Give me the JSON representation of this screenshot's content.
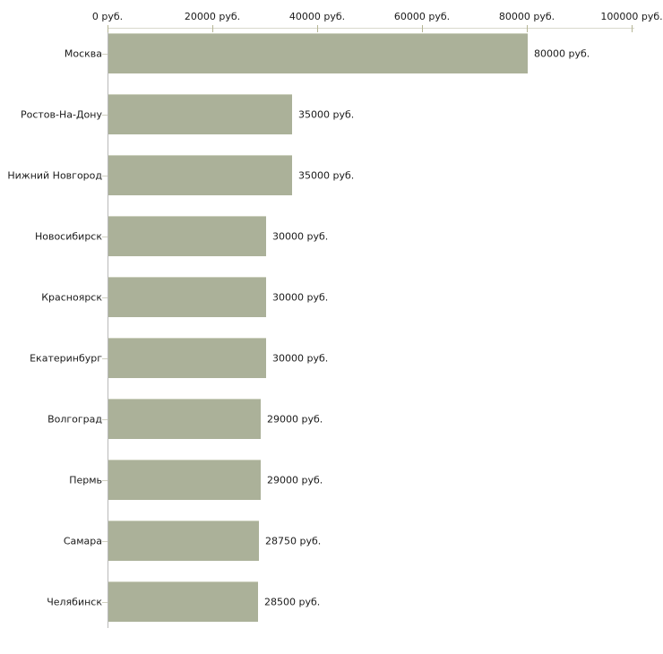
{
  "chart_data": {
    "type": "bar",
    "orientation": "horizontal",
    "title": "",
    "xlabel": "",
    "ylabel": "",
    "categories": [
      "Москва",
      "Ростов-На-Дону",
      "Нижний Новгород",
      "Новосибирск",
      "Красноярск",
      "Екатеринбург",
      "Волгоград",
      "Пермь",
      "Самара",
      "Челябинск"
    ],
    "values": [
      80000,
      35000,
      35000,
      30000,
      30000,
      30000,
      29000,
      29000,
      28750,
      28500
    ],
    "value_labels": [
      "80000 руб.",
      "35000 руб.",
      "35000 руб.",
      "30000 руб.",
      "30000 руб.",
      "30000 руб.",
      "29000 руб.",
      "29000 руб.",
      "28750 руб.",
      "28500 руб."
    ],
    "x_ticks": {
      "values": [
        0,
        20000,
        40000,
        60000,
        80000,
        100000
      ],
      "labels": [
        "0 руб.",
        "20000 руб.",
        "40000 руб.",
        "60000 руб.",
        "80000 руб.",
        "100000 руб."
      ]
    },
    "xlim": [
      0,
      100000
    ],
    "grid": false,
    "legend": false,
    "colors": {
      "bar_fill": "#abb199",
      "bar_top_edge": "#cdd1bf",
      "y_axis_line": "#b9b9b9",
      "x_axis_line": "#d8d8cc",
      "tick_mark": "#b6b696",
      "text": "#1a1a1a",
      "background": "#ffffff"
    }
  }
}
